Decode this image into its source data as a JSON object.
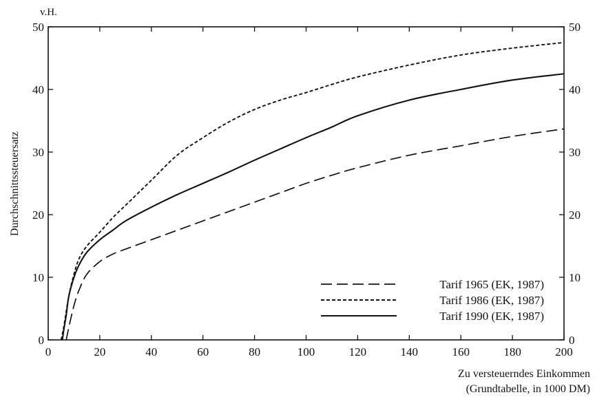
{
  "chart_data": {
    "type": "line",
    "title": "",
    "xlabel": "Zu versteuerndes Einkommen",
    "xlabel_sub": "(Grundtabelle, in 1000 DM)",
    "ylabel": "Durchschnittssteuersatz",
    "y_unit": "v.H.",
    "xlim": [
      0,
      200
    ],
    "ylim": [
      0,
      50
    ],
    "x_ticks": [
      0,
      20,
      40,
      60,
      80,
      100,
      120,
      140,
      160,
      180,
      200
    ],
    "y_ticks": [
      0,
      10,
      20,
      30,
      40,
      50
    ],
    "grid": false,
    "legend_position": "bottom-right",
    "series": [
      {
        "name": "Tarif 1965 (EK, 1987)",
        "line_style": "long-dash",
        "x": [
          7,
          8,
          10,
          12,
          15,
          20,
          25,
          30,
          40,
          50,
          60,
          70,
          80,
          90,
          100,
          110,
          120,
          140,
          160,
          180,
          200
        ],
        "y": [
          0,
          2,
          5.5,
          8,
          10.5,
          12.5,
          13.7,
          14.5,
          16,
          17.5,
          19,
          20.5,
          22,
          23.5,
          25,
          26.3,
          27.5,
          29.5,
          31,
          32.5,
          33.7
        ]
      },
      {
        "name": "Tarif 1986 (EK, 1987)",
        "line_style": "short-dash",
        "x": [
          5,
          6,
          8,
          10,
          12,
          15,
          20,
          25,
          30,
          40,
          50,
          60,
          70,
          80,
          90,
          100,
          110,
          120,
          140,
          160,
          180,
          200
        ],
        "y": [
          0,
          2,
          7,
          10.5,
          13,
          15,
          17.2,
          19.5,
          21.5,
          25.5,
          29.5,
          32.3,
          34.8,
          36.8,
          38.3,
          39.5,
          40.8,
          42,
          43.9,
          45.5,
          46.6,
          47.5
        ]
      },
      {
        "name": "Tarif 1990 (EK, 1987)",
        "line_style": "solid",
        "x": [
          5.5,
          6,
          7,
          8,
          10,
          12,
          15,
          20,
          25,
          30,
          40,
          50,
          60,
          70,
          80,
          90,
          100,
          110,
          120,
          140,
          160,
          180,
          200
        ],
        "y": [
          0,
          1.5,
          4,
          7,
          10,
          12,
          14,
          16,
          17.5,
          19,
          21.2,
          23.2,
          25,
          26.8,
          28.7,
          30.5,
          32.3,
          34,
          35.8,
          38.3,
          40,
          41.5,
          42.5
        ]
      }
    ]
  }
}
